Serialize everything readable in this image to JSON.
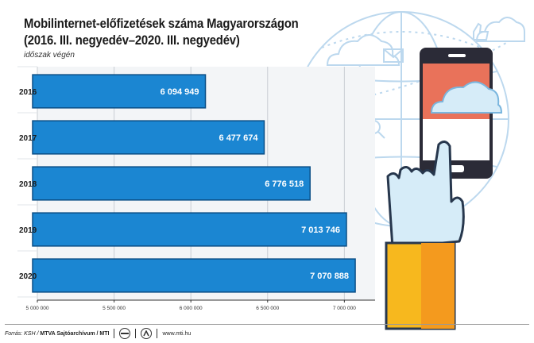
{
  "header": {
    "title_line1": "Mobilinternet-előfizetések száma Magyarországon",
    "title_line2": "(2016. III. negyedév–2020. III. negyedév)",
    "subtitle": "időszak végén"
  },
  "footer": {
    "source_prefix": "Forrás: KSH /",
    "source_org": "MTVA Sajtóarchívum / MTI",
    "website": "www.mti.hu"
  },
  "colors": {
    "bar": "#1b86d2",
    "bar_stroke": "#0b4f86",
    "illustration_line": "#bcd8ee",
    "phone_screen": "#e9725a",
    "hand": "#d6ecf8",
    "sleeve": "#f7b81e"
  },
  "chart_data": {
    "type": "bar",
    "orientation": "horizontal",
    "categories": [
      "2016",
      "2017",
      "2018",
      "2019",
      "2020"
    ],
    "values": [
      6094949,
      6477674,
      6776518,
      7013746,
      7070888
    ],
    "value_labels": [
      "6 094 949",
      "6 477 674",
      "6 776 518",
      "7 013 746",
      "7 070 888"
    ],
    "xlim": [
      5000000,
      7200000
    ],
    "x_ticks": [
      5000000,
      5500000,
      6000000,
      6500000,
      7000000
    ],
    "x_tick_labels": [
      "5 000 000",
      "5 500 000",
      "6 000 000",
      "6 500 000",
      "7 000 000"
    ],
    "grid": "vertical, light"
  }
}
